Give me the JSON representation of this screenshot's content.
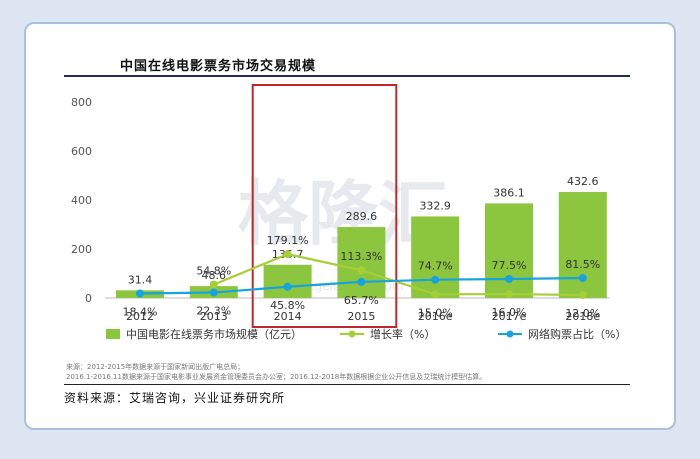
{
  "title": "中国在线电影票务市场交易规模",
  "chart_data": {
    "type": "bar+line",
    "categories": [
      "2012",
      "2013",
      "2014",
      "2015",
      "2016e",
      "2017e",
      "2018e"
    ],
    "ylim": [
      0,
      800
    ],
    "yticks": [
      0,
      200,
      400,
      600,
      800
    ],
    "series": [
      {
        "name": "中国电影在线票务市场规模（亿元）",
        "kind": "bar",
        "color": "#8cc63f",
        "values": [
          31.4,
          48.6,
          135.7,
          289.6,
          332.9,
          386.1,
          432.6
        ],
        "labels": [
          "31.4",
          "48.6",
          "135.7",
          "289.6",
          "332.9",
          "386.1",
          "432.6"
        ]
      },
      {
        "name": "增长率（%）",
        "kind": "line",
        "color": "#a6ce39",
        "values": [
          null,
          54.8,
          179.1,
          113.3,
          15.0,
          16.0,
          12.0
        ],
        "labels": [
          "",
          "54.8%",
          "179.1%",
          "113.3%",
          "15.0%",
          "16.0%",
          "12.0%"
        ]
      },
      {
        "name": "网络购票占比（%）",
        "kind": "line",
        "color": "#19a3dd",
        "values": [
          18.4,
          22.3,
          45.8,
          65.7,
          74.7,
          77.5,
          81.5
        ],
        "labels": [
          "18.4%",
          "22.3%",
          "45.8%",
          "65.7%",
          "74.7%",
          "77.5%",
          "81.5%"
        ]
      }
    ],
    "highlight": {
      "categories": [
        "2014",
        "2015"
      ],
      "color": "#c0272d"
    },
    "watermark": "格隆汇",
    "watermark_url": "www.gelonghui.com"
  },
  "notes": [
    "来源：2012-2015年数据来源于国家新闻出版广电总局；",
    "2016.1-2016.11数据来源于国家电影事业发展资金管理委员会办公室；2016.12-2018年数据根据企业公开信息及艾瑞统计模型估算。"
  ],
  "source": "资料来源：艾瑞咨询，兴业证券研究所"
}
